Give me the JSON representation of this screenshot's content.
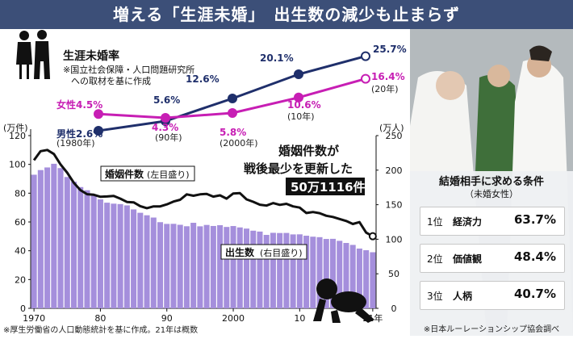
{
  "headline": "増える「生涯未婚」　出生数の減少も止まらず",
  "lifetime_unmarried": {
    "title": "生涯未婚率",
    "note_line1": "※国立社会保障・人口問題研究所",
    "note_line2": "への取材を基に作成",
    "x_labels": [
      "(1980年)",
      "(90年)",
      "(2000年)",
      "(10年)",
      "(20年)"
    ],
    "male_label": "男性",
    "female_label": "女性",
    "male_values": [
      "2.6%",
      "5.6%",
      "12.6%",
      "20.1%",
      "25.7%"
    ],
    "female_values": [
      "4.5%",
      "4.3%",
      "5.8%",
      "10.6%",
      "16.4%"
    ],
    "male_color": "#1f2f6b",
    "female_color": "#c71eb4"
  },
  "chart_data": [
    {
      "type": "line",
      "title": "生涯未婚率",
      "x": [
        "1980",
        "1990",
        "2000",
        "2010",
        "2020"
      ],
      "series": [
        {
          "name": "男性",
          "values": [
            2.6,
            5.6,
            12.6,
            20.1,
            25.7
          ]
        },
        {
          "name": "女性",
          "values": [
            4.5,
            4.3,
            5.8,
            10.6,
            16.4
          ]
        }
      ],
      "ylabel": "%"
    },
    {
      "type": "bar",
      "series_name": "出生数",
      "axis_note": "(右目盛り)",
      "units": "万人",
      "x_start": 1970,
      "x_end": 2021,
      "values": [
        193.4,
        200.1,
        203.9,
        209.2,
        203.0,
        190.1,
        183.3,
        175.5,
        170.9,
        164.3,
        157.7,
        152.9,
        151.5,
        150.9,
        149.0,
        143.2,
        138.3,
        134.7,
        131.4,
        124.7,
        122.2,
        122.3,
        120.9,
        118.8,
        123.8,
        118.7,
        120.7,
        119.2,
        120.3,
        117.8,
        119.1,
        117.1,
        115.4,
        112.4,
        111.1,
        106.3,
        109.3,
        109.0,
        109.1,
        107.0,
        107.1,
        105.1,
        103.7,
        103.0,
        100.4,
        100.6,
        97.7,
        94.6,
        91.8,
        86.5,
        84.1,
        81.2
      ],
      "ylim": [
        0,
        250
      ],
      "yticks": [
        "0",
        "50",
        "100",
        "150",
        "200",
        "250"
      ],
      "y_unit_label": "(万人)",
      "color": "#a58fdc"
    },
    {
      "type": "line",
      "series_name": "婚姻件数",
      "axis_note": "(左目盛り)",
      "units": "万件",
      "x_start": 1970,
      "x_end": 2021,
      "values": [
        102.9,
        109.2,
        110.0,
        107.2,
        100.0,
        94.2,
        87.2,
        82.1,
        79.3,
        78.9,
        77.5,
        77.7,
        78.1,
        76.2,
        73.9,
        73.6,
        71.0,
        69.6,
        70.8,
        70.8,
        72.2,
        74.2,
        75.4,
        79.2,
        78.2,
        79.2,
        79.5,
        77.6,
        78.5,
        76.2,
        79.8,
        80.0,
        75.7,
        74.0,
        72.0,
        71.4,
        73.1,
        71.9,
        72.6,
        70.8,
        70.0,
        66.2,
        66.9,
        66.1,
        64.3,
        63.5,
        62.1,
        60.7,
        58.6,
        59.9,
        52.6,
        50.1
      ],
      "ylim": [
        0,
        120
      ],
      "yticks": [
        "0",
        "20",
        "40",
        "60",
        "80",
        "100",
        "120"
      ],
      "y_unit_label": "(万件)",
      "x_tick_labels": [
        "1970",
        "80",
        "90",
        "2000",
        "10",
        "21年"
      ],
      "color": "#111111"
    }
  ],
  "annotation": {
    "line1": "婚姻件数が",
    "line2": "戦後最少を更新した",
    "value": "50万1116件"
  },
  "marriage_label": {
    "name": "婚姻件数",
    "note": "(左目盛り)"
  },
  "birth_label": {
    "name": "出生数",
    "note": "(右目盛り)"
  },
  "source_left": "※厚生労働省の人口動態統計を基に作成。21年は概数",
  "conditions": {
    "title": "結婚相手に求める条件",
    "subtitle": "（未婚女性）",
    "items": [
      {
        "rank": "1位",
        "label": "経済力",
        "value": "63.7%"
      },
      {
        "rank": "2位",
        "label": "価値観",
        "value": "48.4%"
      },
      {
        "rank": "3位",
        "label": "人柄",
        "value": "40.7%"
      }
    ],
    "source": "※日本ルーレーションシップ協会調べ"
  }
}
